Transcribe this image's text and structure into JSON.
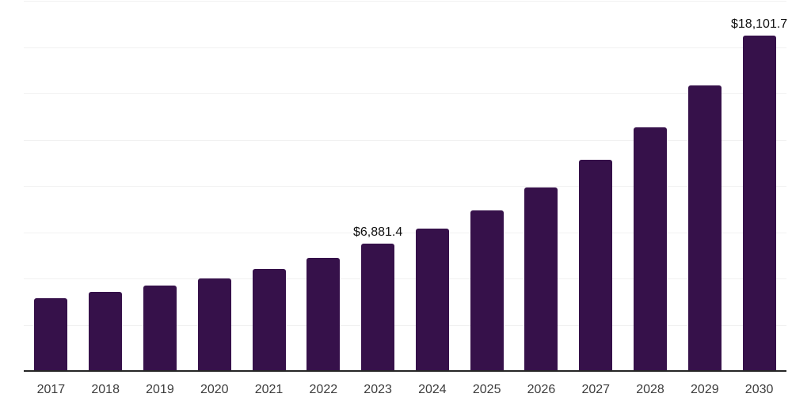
{
  "chart_data": {
    "type": "bar",
    "title": "",
    "xlabel": "",
    "ylabel": "",
    "categories": [
      "2017",
      "2018",
      "2019",
      "2020",
      "2021",
      "2022",
      "2023",
      "2024",
      "2025",
      "2026",
      "2027",
      "2028",
      "2029",
      "2030"
    ],
    "values": [
      3950,
      4270,
      4640,
      5020,
      5520,
      6140,
      6881.4,
      7700,
      8680,
      9910,
      11410,
      13170,
      15420,
      18101.7
    ],
    "value_labels": [
      {
        "category": "2023",
        "text": "$6,881.4"
      },
      {
        "category": "2030",
        "text": "$18,101.7"
      }
    ],
    "ylim": [
      0,
      20000
    ],
    "gridline_step": 2500,
    "grid": true,
    "legend": false,
    "colors": {
      "bar": "#36114a",
      "axis": "#262626",
      "gridline": "#f1f1f1",
      "tick_label": "#3d3d3d",
      "value_label": "#111111",
      "background": "#ffffff"
    }
  }
}
